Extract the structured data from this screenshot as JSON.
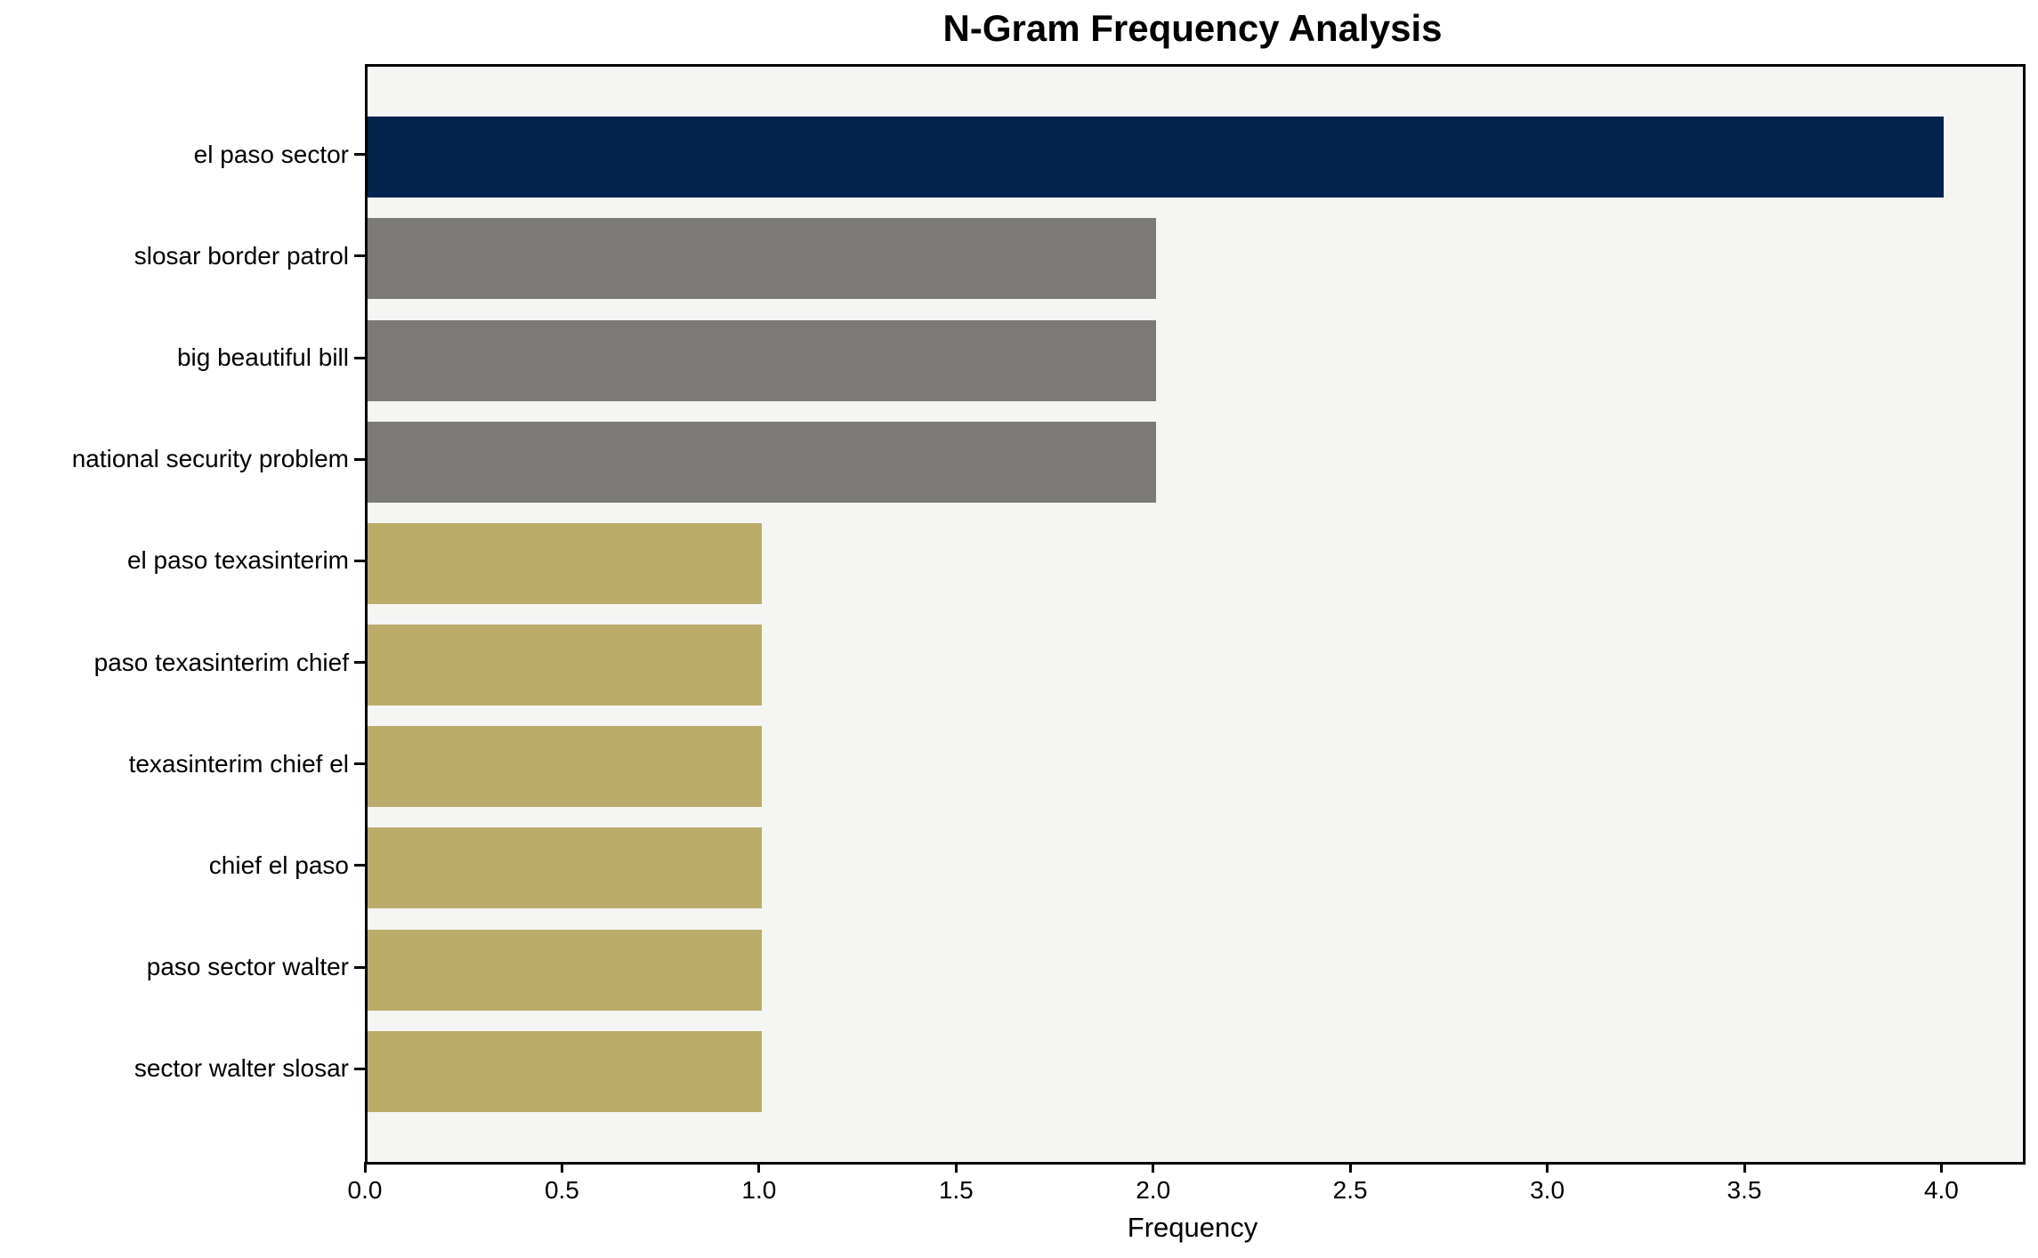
{
  "title": "N-Gram Frequency Analysis",
  "chart_data": {
    "type": "bar",
    "orientation": "horizontal",
    "title": "N-Gram Frequency Analysis",
    "xlabel": "Frequency",
    "ylabel": "",
    "categories": [
      "el paso sector",
      "slosar border patrol",
      "big beautiful bill",
      "national security problem",
      "el paso texasinterim",
      "paso texasinterim chief",
      "texasinterim chief el",
      "chief el paso",
      "paso sector walter",
      "sector walter slosar"
    ],
    "values": [
      4,
      2,
      2,
      2,
      1,
      1,
      1,
      1,
      1,
      1
    ],
    "bar_colors": [
      "#03234e",
      "#7b7a76",
      "#7b7a76",
      "#7b7a76",
      "#bbac6b",
      "#bbac6b",
      "#bbac6b",
      "#bbac6b",
      "#bbac6b",
      "#bbac6b"
    ],
    "xlim": [
      0,
      4.2
    ],
    "xtick_labels": [
      "0.0",
      "0.5",
      "1.0",
      "1.5",
      "2.0",
      "2.5",
      "3.0",
      "3.5",
      "4.0"
    ],
    "xtick_values": [
      0,
      0.5,
      1,
      1.5,
      2,
      2.5,
      3,
      3.5,
      4
    ],
    "grid": false,
    "legend": null,
    "plot_background": "#f5f5f4",
    "figure_background": "#ffffff",
    "colors": {
      "top_bar_navy": "#03234e",
      "mid_bar_gray": "#7b7a76",
      "low_bar_khaki": "#bbac6b",
      "text": "#000000"
    }
  }
}
